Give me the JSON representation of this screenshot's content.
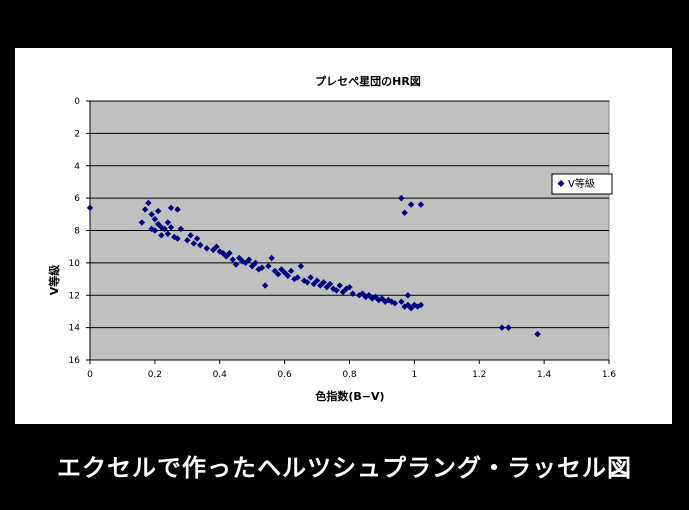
{
  "caption": "エクセルで作ったヘルツシュプラング・ラッセル図",
  "chart_data": {
    "type": "scatter",
    "title": "プレセペ星団のHR図",
    "xlabel": "色指数(B−V)",
    "ylabel": "V等級",
    "xlim": [
      0,
      1.6
    ],
    "ylim": [
      0,
      16
    ],
    "y_reversed": true,
    "xticks": [
      "0",
      "0.2",
      "0.4",
      "0.6",
      "0.8",
      "1",
      "1.2",
      "1.4",
      "1.6"
    ],
    "yticks": [
      "0",
      "2",
      "4",
      "6",
      "8",
      "10",
      "12",
      "14",
      "16"
    ],
    "grid": "horizontal",
    "plot_background": "#c0c0c0",
    "marker_color": "#000080",
    "legend": {
      "position": "right",
      "label": "V等級"
    },
    "series": [
      {
        "name": "V等級",
        "points": [
          [
            0.0,
            6.6
          ],
          [
            0.16,
            7.5
          ],
          [
            0.17,
            6.7
          ],
          [
            0.18,
            6.3
          ],
          [
            0.19,
            7.0
          ],
          [
            0.19,
            7.9
          ],
          [
            0.2,
            7.3
          ],
          [
            0.2,
            8.0
          ],
          [
            0.21,
            6.8
          ],
          [
            0.21,
            7.6
          ],
          [
            0.22,
            8.3
          ],
          [
            0.22,
            7.8
          ],
          [
            0.23,
            7.9
          ],
          [
            0.24,
            7.5
          ],
          [
            0.24,
            8.2
          ],
          [
            0.25,
            7.8
          ],
          [
            0.25,
            6.6
          ],
          [
            0.26,
            8.4
          ],
          [
            0.27,
            6.7
          ],
          [
            0.27,
            8.5
          ],
          [
            0.28,
            7.9
          ],
          [
            0.3,
            8.6
          ],
          [
            0.31,
            8.3
          ],
          [
            0.32,
            8.8
          ],
          [
            0.33,
            8.5
          ],
          [
            0.34,
            8.9
          ],
          [
            0.36,
            9.1
          ],
          [
            0.38,
            9.2
          ],
          [
            0.39,
            9.0
          ],
          [
            0.4,
            9.3
          ],
          [
            0.41,
            9.4
          ],
          [
            0.42,
            9.6
          ],
          [
            0.43,
            9.4
          ],
          [
            0.44,
            9.8
          ],
          [
            0.45,
            10.1
          ],
          [
            0.46,
            9.7
          ],
          [
            0.47,
            9.9
          ],
          [
            0.48,
            10.0
          ],
          [
            0.49,
            9.8
          ],
          [
            0.5,
            10.2
          ],
          [
            0.51,
            10.0
          ],
          [
            0.52,
            10.4
          ],
          [
            0.53,
            10.3
          ],
          [
            0.54,
            11.4
          ],
          [
            0.55,
            10.2
          ],
          [
            0.56,
            9.7
          ],
          [
            0.57,
            10.5
          ],
          [
            0.58,
            10.7
          ],
          [
            0.59,
            10.4
          ],
          [
            0.6,
            10.6
          ],
          [
            0.61,
            10.8
          ],
          [
            0.62,
            10.5
          ],
          [
            0.63,
            11.0
          ],
          [
            0.64,
            10.9
          ],
          [
            0.65,
            10.2
          ],
          [
            0.66,
            11.1
          ],
          [
            0.67,
            11.2
          ],
          [
            0.68,
            10.9
          ],
          [
            0.69,
            11.3
          ],
          [
            0.7,
            11.1
          ],
          [
            0.71,
            11.4
          ],
          [
            0.72,
            11.2
          ],
          [
            0.73,
            11.5
          ],
          [
            0.74,
            11.3
          ],
          [
            0.75,
            11.6
          ],
          [
            0.76,
            11.7
          ],
          [
            0.77,
            11.4
          ],
          [
            0.78,
            11.8
          ],
          [
            0.79,
            11.6
          ],
          [
            0.8,
            11.5
          ],
          [
            0.81,
            11.9
          ],
          [
            0.83,
            12.0
          ],
          [
            0.84,
            11.9
          ],
          [
            0.85,
            12.1
          ],
          [
            0.86,
            12.0
          ],
          [
            0.87,
            12.2
          ],
          [
            0.88,
            12.1
          ],
          [
            0.89,
            12.3
          ],
          [
            0.9,
            12.2
          ],
          [
            0.91,
            12.4
          ],
          [
            0.92,
            12.3
          ],
          [
            0.93,
            12.4
          ],
          [
            0.94,
            12.5
          ],
          [
            0.96,
            12.4
          ],
          [
            0.97,
            12.7
          ],
          [
            0.98,
            12.6
          ],
          [
            0.99,
            12.8
          ],
          [
            1.0,
            12.6
          ],
          [
            1.01,
            12.7
          ],
          [
            1.02,
            12.6
          ],
          [
            0.96,
            6.0
          ],
          [
            0.97,
            6.9
          ],
          [
            0.99,
            6.4
          ],
          [
            1.02,
            6.4
          ],
          [
            0.98,
            12.0
          ],
          [
            1.27,
            14.0
          ],
          [
            1.29,
            14.0
          ],
          [
            1.38,
            14.4
          ]
        ]
      }
    ]
  }
}
